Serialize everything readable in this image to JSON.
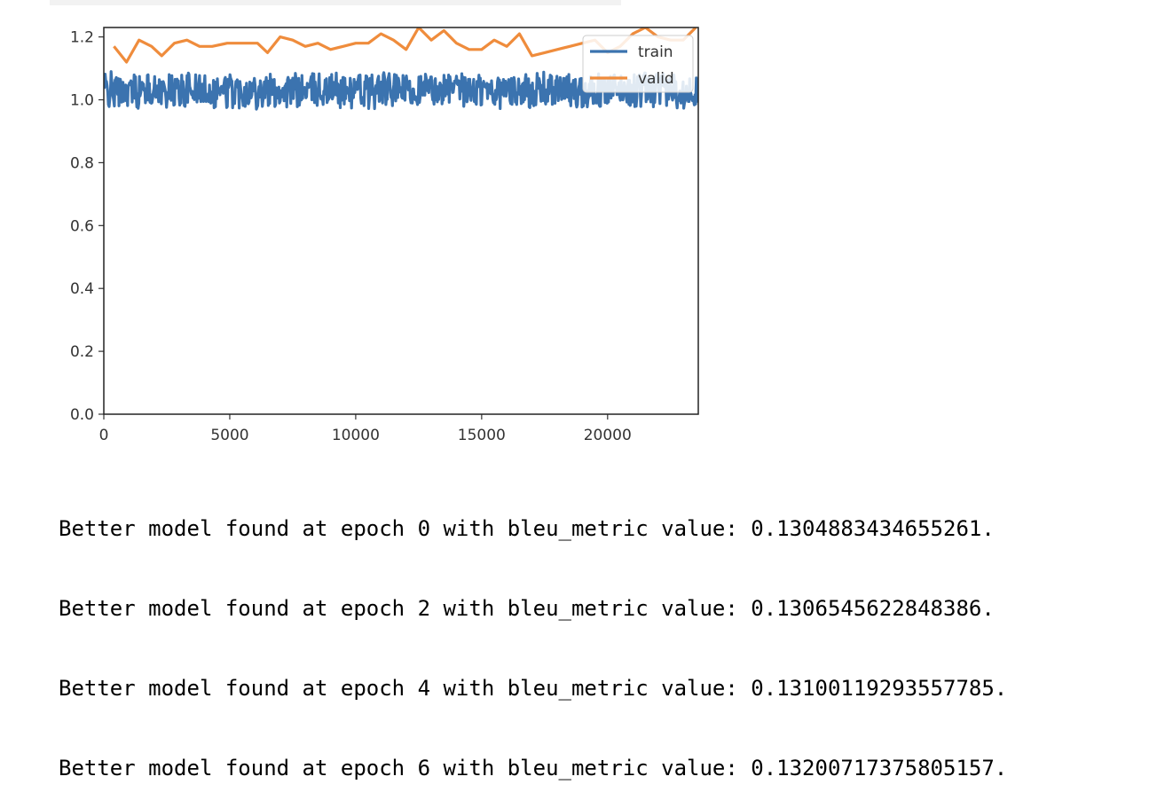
{
  "chart_data": {
    "type": "line",
    "title": "",
    "xlabel": "",
    "ylabel": "",
    "xlim": [
      0,
      23600
    ],
    "ylim": [
      0.0,
      1.23
    ],
    "grid": false,
    "legend": {
      "placement": "top-right",
      "entries": [
        "train",
        "valid"
      ]
    },
    "xticks": [
      0,
      5000,
      10000,
      15000,
      20000
    ],
    "xtick_labels": [
      "0",
      "5000",
      "10000",
      "15000",
      "20000"
    ],
    "yticks": [
      0.0,
      0.2,
      0.4,
      0.6,
      0.8,
      1.0,
      1.2
    ],
    "ytick_labels": [
      "0.0",
      "0.2",
      "0.4",
      "0.6",
      "0.8",
      "1.0",
      "1.2"
    ],
    "series": [
      {
        "name": "train",
        "color": "#3b73af",
        "style": "noisy band",
        "mean": 1.03,
        "range": [
          0.93,
          1.11
        ],
        "x_range": [
          0,
          23600
        ]
      },
      {
        "name": "valid",
        "color": "#ef8c3c",
        "x": [
          400,
          900,
          1400,
          1900,
          2300,
          2800,
          3300,
          3800,
          4300,
          4900,
          5500,
          6100,
          6500,
          7000,
          7500,
          8000,
          8500,
          9000,
          9500,
          10000,
          10500,
          11000,
          11500,
          12000,
          12500,
          13000,
          13500,
          14000,
          14500,
          15000,
          15500,
          16000,
          16500,
          17000,
          17500,
          18000,
          18500,
          19000,
          19500,
          20000,
          20500,
          21000,
          21500,
          22000,
          22500,
          23000,
          23500
        ],
        "y": [
          1.17,
          1.12,
          1.19,
          1.17,
          1.14,
          1.18,
          1.19,
          1.17,
          1.17,
          1.18,
          1.18,
          1.18,
          1.15,
          1.2,
          1.19,
          1.17,
          1.18,
          1.16,
          1.17,
          1.18,
          1.18,
          1.21,
          1.19,
          1.16,
          1.23,
          1.19,
          1.22,
          1.18,
          1.16,
          1.16,
          1.19,
          1.17,
          1.21,
          1.14,
          1.15,
          1.16,
          1.17,
          1.18,
          1.19,
          1.15,
          1.17,
          1.21,
          1.23,
          1.2,
          1.19,
          1.19,
          1.23
        ]
      }
    ]
  },
  "output": {
    "lines": [
      "Better model found at epoch 0 with bleu_metric value: 0.1304883434655261.",
      "Better model found at epoch 2 with bleu_metric value: 0.1306545622848386.",
      "Better model found at epoch 4 with bleu_metric value: 0.13100119293557785.",
      "Better model found at epoch 6 with bleu_metric value: 0.13200717375805157."
    ]
  }
}
